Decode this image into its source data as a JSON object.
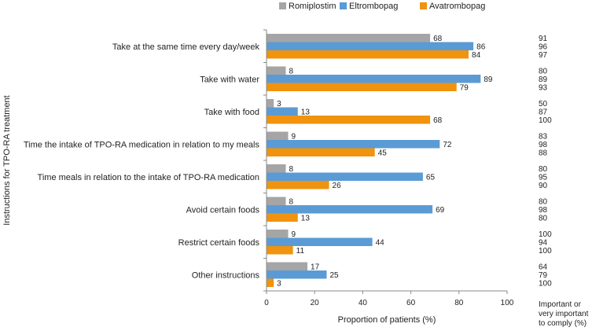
{
  "chart_data": {
    "type": "bar",
    "orientation": "horizontal",
    "categories": [
      "Take at the same time every day/week",
      "Take with water",
      "Take with food",
      "Time the intake of TPO-RA medication in relation to my meals",
      "Time meals in relation to the intake of TPO-RA medication",
      "Avoid certain foods",
      "Restrict certain foods",
      "Other instructions"
    ],
    "series": [
      {
        "name": "Romiplostim",
        "color": "#a5a5a5",
        "values": [
          68,
          8,
          3,
          9,
          8,
          8,
          9,
          17
        ]
      },
      {
        "name": "Eltrombopag",
        "color": "#5b9bd5",
        "values": [
          86,
          89,
          13,
          72,
          65,
          69,
          44,
          25
        ]
      },
      {
        "name": "Avatrombopag",
        "color": "#f0930e",
        "values": [
          84,
          79,
          68,
          45,
          26,
          13,
          11,
          3
        ]
      }
    ],
    "important_to_comply": {
      "label": "Important or very important to comply (%)",
      "lines": [
        "Important or",
        "very important",
        "to comply (%)"
      ],
      "values": [
        [
          91,
          96,
          97
        ],
        [
          80,
          89,
          93
        ],
        [
          50,
          87,
          100
        ],
        [
          83,
          98,
          88
        ],
        [
          80,
          95,
          90
        ],
        [
          80,
          98,
          80
        ],
        [
          100,
          94,
          100
        ],
        [
          64,
          79,
          100
        ]
      ]
    },
    "xlabel": "Proportion of patients (%)",
    "ylabel": "Instructions for TPO-RA treatment",
    "xlim": [
      0,
      100
    ],
    "xticks": [
      0,
      20,
      40,
      60,
      80,
      100
    ],
    "legend_position": "top",
    "grid": false
  }
}
